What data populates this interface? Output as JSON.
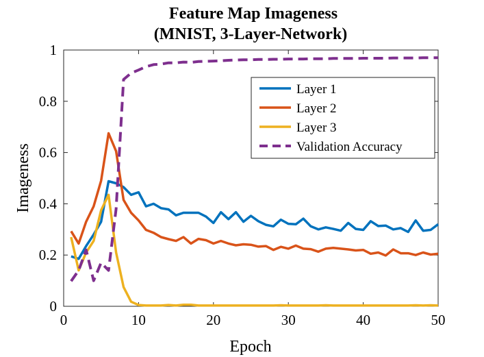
{
  "chart_data": {
    "type": "line",
    "title": "Feature Map Imageness",
    "subtitle": "(MNIST, 3-Layer-Network)",
    "xlabel": "Epoch",
    "ylabel": "Imageness",
    "xlim": [
      0,
      50
    ],
    "ylim": [
      0,
      1
    ],
    "xticks": [
      "0",
      "10",
      "20",
      "30",
      "40",
      "50"
    ],
    "yticks": [
      "0",
      "0.2",
      "0.4",
      "0.6",
      "0.8",
      "1"
    ],
    "xtick_values": [
      0,
      10,
      20,
      30,
      40,
      50
    ],
    "ytick_values": [
      0,
      0.2,
      0.4,
      0.6,
      0.8,
      1
    ],
    "grid": false,
    "legend_position": "top-right",
    "x": [
      1,
      2,
      3,
      4,
      5,
      6,
      7,
      8,
      9,
      10,
      11,
      12,
      13,
      14,
      15,
      16,
      17,
      18,
      19,
      20,
      21,
      22,
      23,
      24,
      25,
      26,
      27,
      28,
      29,
      30,
      31,
      32,
      33,
      34,
      35,
      36,
      37,
      38,
      39,
      40,
      41,
      42,
      43,
      44,
      45,
      46,
      47,
      48,
      49,
      50
    ],
    "series": [
      {
        "name": "Layer 1",
        "color": "#0072BD",
        "dash": "solid",
        "values": [
          0.195,
          0.185,
          0.235,
          0.28,
          0.33,
          0.488,
          0.48,
          0.465,
          0.435,
          0.445,
          0.39,
          0.4,
          0.383,
          0.378,
          0.355,
          0.365,
          0.365,
          0.365,
          0.35,
          0.325,
          0.367,
          0.34,
          0.367,
          0.33,
          0.353,
          0.332,
          0.318,
          0.312,
          0.338,
          0.322,
          0.32,
          0.342,
          0.312,
          0.3,
          0.308,
          0.302,
          0.295,
          0.325,
          0.302,
          0.298,
          0.332,
          0.313,
          0.315,
          0.3,
          0.305,
          0.29,
          0.335,
          0.295,
          0.298,
          0.32
        ]
      },
      {
        "name": "Layer 2",
        "color": "#D95319",
        "dash": "solid",
        "values": [
          0.293,
          0.245,
          0.33,
          0.39,
          0.49,
          0.675,
          0.605,
          0.415,
          0.365,
          0.335,
          0.298,
          0.287,
          0.27,
          0.262,
          0.255,
          0.27,
          0.245,
          0.263,
          0.258,
          0.245,
          0.255,
          0.245,
          0.238,
          0.242,
          0.24,
          0.233,
          0.235,
          0.22,
          0.232,
          0.225,
          0.237,
          0.225,
          0.223,
          0.213,
          0.225,
          0.228,
          0.225,
          0.222,
          0.218,
          0.22,
          0.205,
          0.21,
          0.198,
          0.222,
          0.207,
          0.207,
          0.2,
          0.21,
          0.202,
          0.205
        ]
      },
      {
        "name": "Layer 3",
        "color": "#EDB120",
        "dash": "solid",
        "values": [
          0.27,
          0.14,
          0.21,
          0.255,
          0.375,
          0.435,
          0.21,
          0.075,
          0.018,
          0.005,
          0.003,
          0.003,
          0.003,
          0.005,
          0.003,
          0.006,
          0.006,
          0.003,
          0.003,
          0.003,
          0.003,
          0.003,
          0.003,
          0.003,
          0.003,
          0.003,
          0.003,
          0.003,
          0.004,
          0.003,
          0.003,
          0.003,
          0.003,
          0.003,
          0.004,
          0.003,
          0.003,
          0.003,
          0.003,
          0.003,
          0.003,
          0.003,
          0.003,
          0.003,
          0.003,
          0.003,
          0.004,
          0.003,
          0.004,
          0.003
        ]
      },
      {
        "name": "Validation Accuracy",
        "color": "#7E2F8E",
        "dash": "dashed",
        "values": [
          0.098,
          0.14,
          0.22,
          0.1,
          0.17,
          0.14,
          0.38,
          0.885,
          0.91,
          0.922,
          0.935,
          0.943,
          0.945,
          0.95,
          0.95,
          0.953,
          0.952,
          0.955,
          0.956,
          0.957,
          0.958,
          0.96,
          0.961,
          0.962,
          0.962,
          0.963,
          0.963,
          0.964,
          0.964,
          0.965,
          0.965,
          0.965,
          0.966,
          0.966,
          0.966,
          0.967,
          0.967,
          0.967,
          0.967,
          0.968,
          0.968,
          0.968,
          0.968,
          0.969,
          0.969,
          0.969,
          0.969,
          0.97,
          0.97,
          0.97
        ]
      }
    ]
  }
}
